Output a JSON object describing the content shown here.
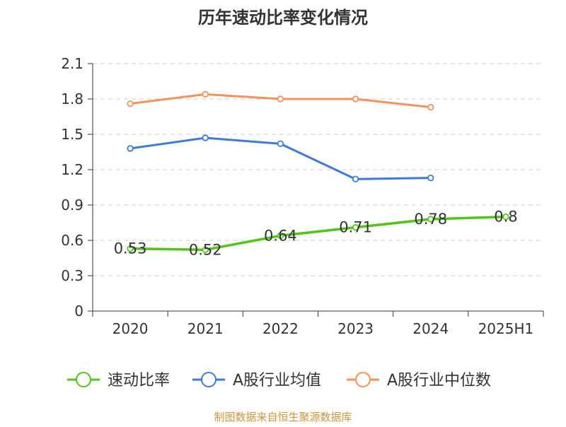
{
  "chart_data": {
    "type": "line",
    "title": "历年速动比率变化情况",
    "categories": [
      "2020",
      "2021",
      "2022",
      "2023",
      "2024",
      "2025H1"
    ],
    "yticks": [
      "0",
      "0.3",
      "0.6",
      "0.9",
      "1.2",
      "1.5",
      "1.8",
      "2.1"
    ],
    "ylim": [
      0,
      2.1
    ],
    "xlabel": "",
    "ylabel": "",
    "grid": "horizontal dashed",
    "legend_position": "bottom",
    "series": [
      {
        "name": "速动比率",
        "color": "#52c41a",
        "values": [
          0.53,
          0.52,
          0.64,
          0.71,
          0.78,
          0.8
        ],
        "labels": [
          "0.53",
          "0.52",
          "0.64",
          "0.71",
          "0.78",
          "0.8"
        ]
      },
      {
        "name": "A股行业均值",
        "color": "#3f7ad6",
        "values": [
          1.38,
          1.47,
          1.42,
          1.12,
          1.13,
          null
        ]
      },
      {
        "name": "A股行业中位数",
        "color": "#f5925b",
        "values": [
          1.76,
          1.84,
          1.8,
          1.8,
          1.73,
          null
        ]
      }
    ]
  },
  "footer": {
    "source": "制图数据来自恒生聚源数据库",
    "source_color": "#c8963c"
  }
}
